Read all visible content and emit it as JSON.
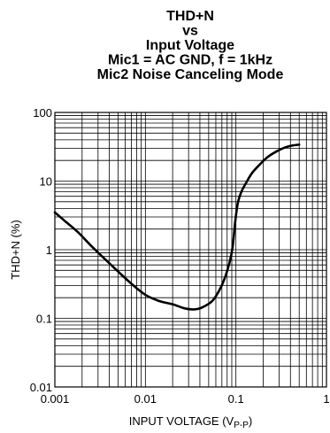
{
  "chart_data": {
    "type": "line",
    "title_lines": [
      "THD+N",
      "vs",
      "Input Voltage",
      "Mic1 = AC GND, f = 1kHz",
      "Mic2 Noise Canceling Mode"
    ],
    "xlabel": {
      "main": "INPUT VOLTAGE (V",
      "sub": "P-P",
      "close": ")"
    },
    "ylabel": "THD+N (%)",
    "x_scale": "log",
    "y_scale": "log",
    "xlim": [
      0.001,
      1
    ],
    "ylim": [
      0.01,
      100
    ],
    "grid": true,
    "x_ticks": [
      {
        "value": 0.001,
        "label": "0.001"
      },
      {
        "value": 0.01,
        "label": "0.01"
      },
      {
        "value": 0.1,
        "label": "0.1"
      },
      {
        "value": 1,
        "label": "1"
      }
    ],
    "y_ticks": [
      {
        "value": 0.01,
        "label": "0.01"
      },
      {
        "value": 0.1,
        "label": "0.1"
      },
      {
        "value": 1,
        "label": "1"
      },
      {
        "value": 10,
        "label": "10"
      },
      {
        "value": 100,
        "label": "100"
      }
    ],
    "series": [
      {
        "color": "#000000",
        "x": [
          0.001,
          0.0013,
          0.0018,
          0.0025,
          0.0035,
          0.005,
          0.007,
          0.01,
          0.014,
          0.02,
          0.027,
          0.033,
          0.038,
          0.045,
          0.055,
          0.065,
          0.075,
          0.085,
          0.092,
          0.098,
          0.105,
          0.115,
          0.13,
          0.15,
          0.18,
          0.22,
          0.28,
          0.35,
          0.42,
          0.5
        ],
        "y": [
          3.5,
          2.6,
          1.8,
          1.15,
          0.75,
          0.48,
          0.32,
          0.22,
          0.18,
          0.16,
          0.14,
          0.135,
          0.137,
          0.15,
          0.18,
          0.25,
          0.38,
          0.65,
          1.1,
          2.5,
          4.8,
          7.0,
          9.5,
          13,
          17,
          22,
          27,
          31,
          33,
          34
        ]
      }
    ]
  }
}
